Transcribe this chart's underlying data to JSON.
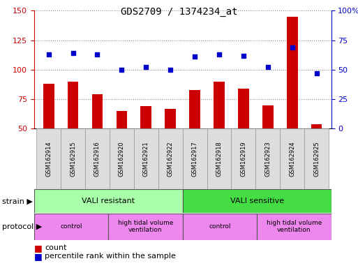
{
  "title": "GDS2709 / 1374234_at",
  "samples": [
    "GSM162914",
    "GSM162915",
    "GSM162916",
    "GSM162920",
    "GSM162921",
    "GSM162922",
    "GSM162917",
    "GSM162918",
    "GSM162919",
    "GSM162923",
    "GSM162924",
    "GSM162925"
  ],
  "count_values": [
    88,
    90,
    79,
    65,
    69,
    67,
    83,
    90,
    84,
    70,
    145,
    54
  ],
  "percentile_values": [
    63,
    64,
    63,
    50,
    52,
    50,
    61,
    63,
    62,
    52,
    69,
    47
  ],
  "bar_color": "#cc0000",
  "dot_color": "#0000cc",
  "left_ylim": [
    50,
    150
  ],
  "left_yticks": [
    50,
    75,
    100,
    125,
    150
  ],
  "right_ylim": [
    0,
    100
  ],
  "right_yticks": [
    0,
    25,
    50,
    75,
    100
  ],
  "left_tick_color": "#cc0000",
  "right_tick_color": "#0000cc",
  "strain_labels": [
    {
      "text": "VALI resistant",
      "start": 0,
      "end": 6,
      "color": "#aaffaa"
    },
    {
      "text": "VALI sensitive",
      "start": 6,
      "end": 12,
      "color": "#44dd44"
    }
  ],
  "protocol_labels": [
    {
      "text": "control",
      "start": 0,
      "end": 3,
      "color": "#ee88ee"
    },
    {
      "text": "high tidal volume\nventilation",
      "start": 3,
      "end": 6,
      "color": "#ee88ee"
    },
    {
      "text": "control",
      "start": 6,
      "end": 9,
      "color": "#ee88ee"
    },
    {
      "text": "high tidal volume\nventilation",
      "start": 9,
      "end": 12,
      "color": "#ee88ee"
    }
  ],
  "legend_items": [
    {
      "color": "#cc0000",
      "label": "count"
    },
    {
      "color": "#0000cc",
      "label": "percentile rank within the sample"
    }
  ],
  "grid_color": "#888888",
  "bg_color": "#ffffff",
  "title_fontsize": 10,
  "tick_fontsize": 8,
  "label_fontsize": 8,
  "sample_fontsize": 6,
  "band_fontsize": 8
}
